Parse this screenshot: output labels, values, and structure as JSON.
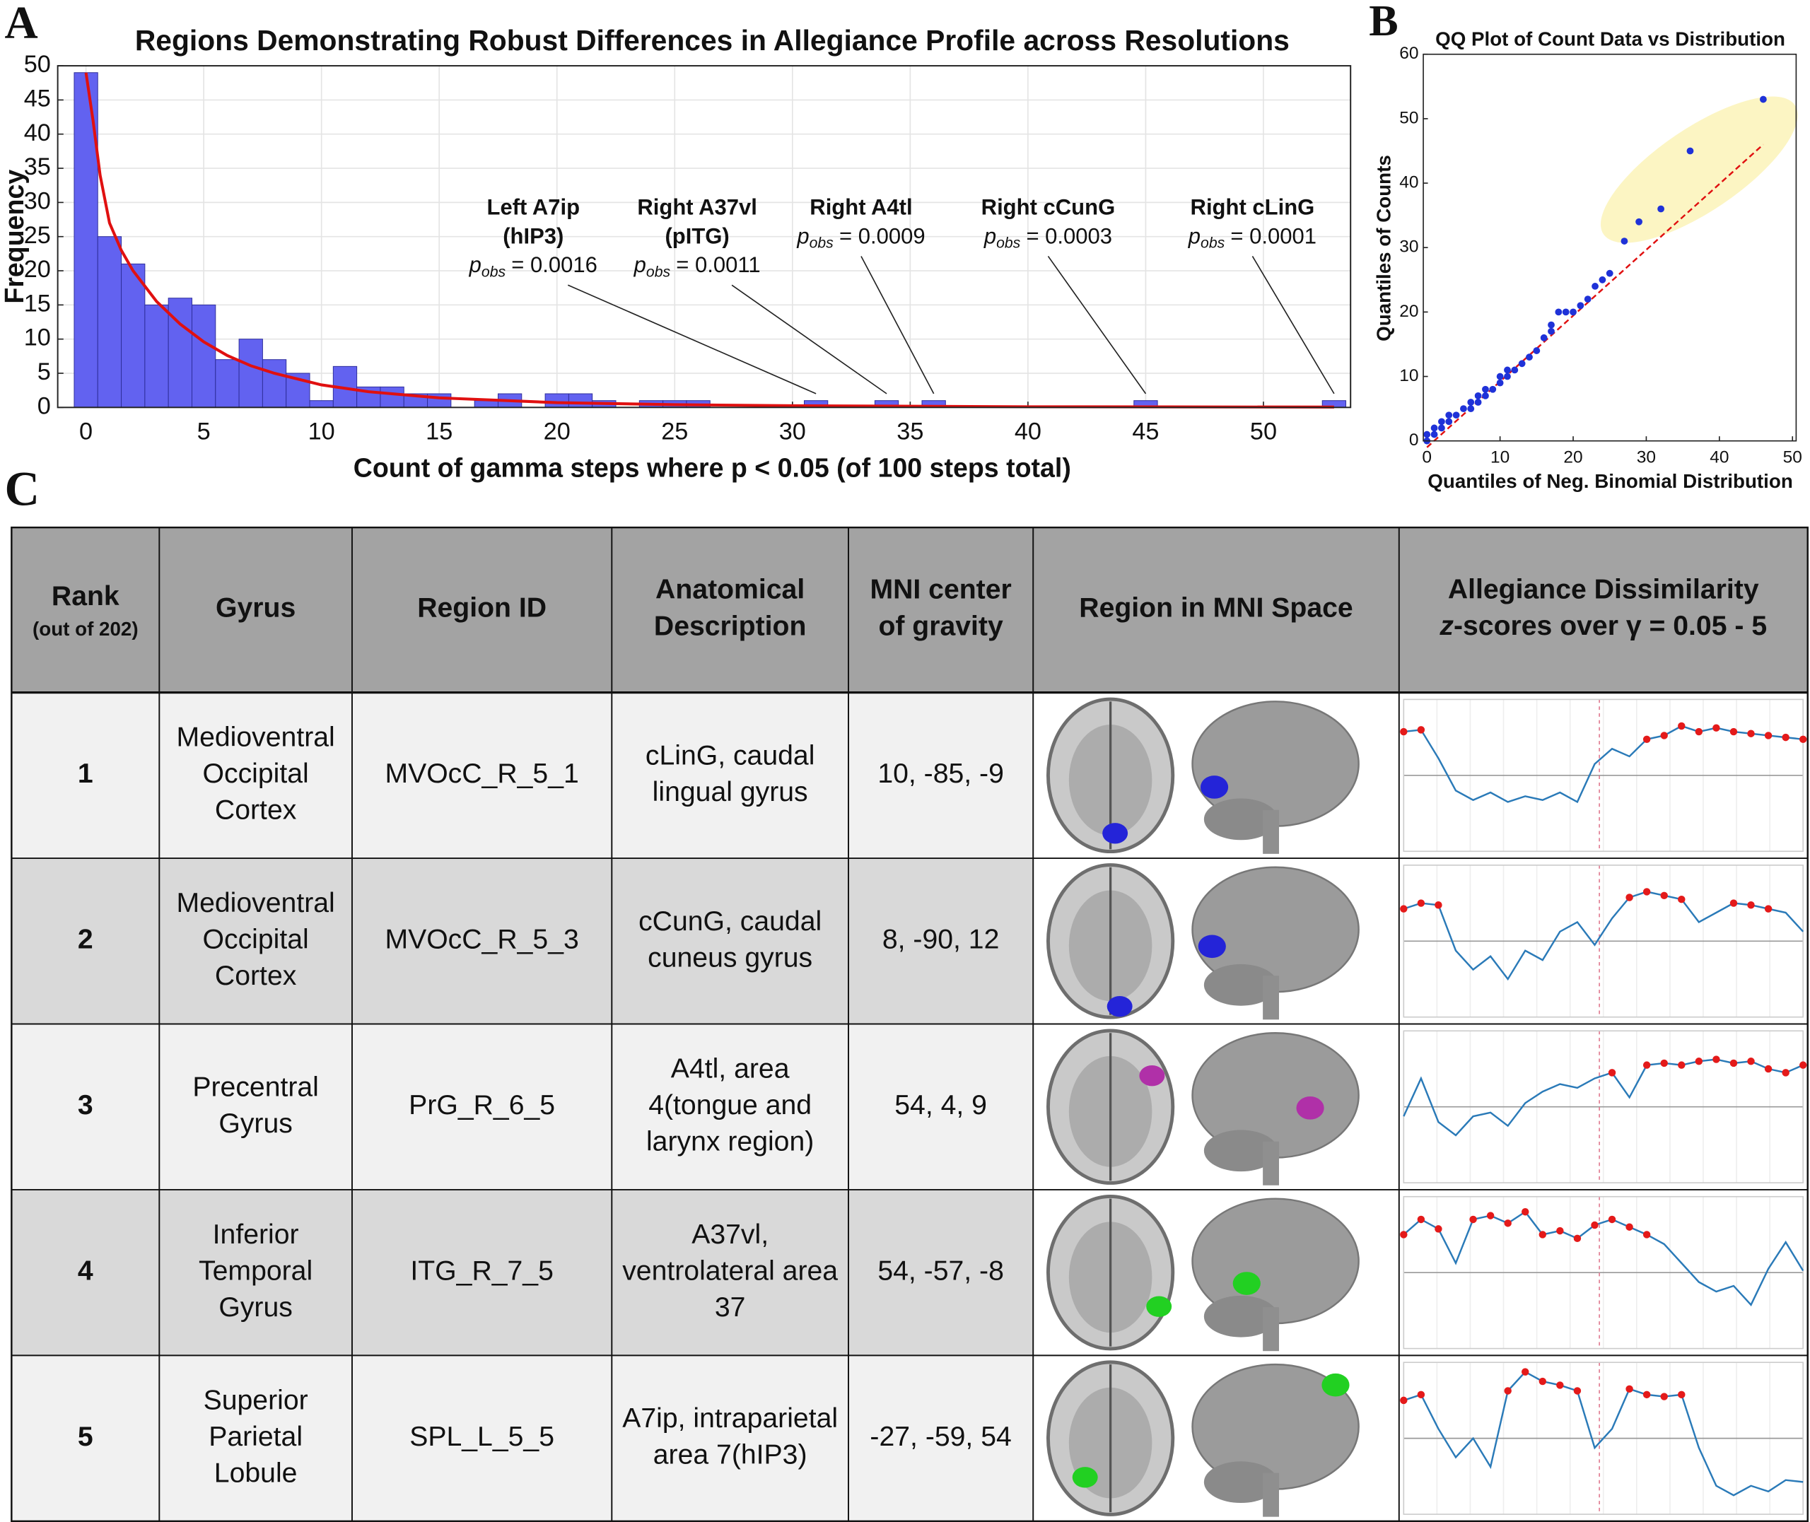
{
  "panels": {
    "a": "A",
    "b": "B",
    "c": "C"
  },
  "chart_data": [
    {
      "type": "histogram",
      "title": "Regions Demonstrating Robust Differences in Allegiance Profile across Resolutions",
      "x_label": "Count of gamma steps where p < 0.05 (of 100 steps total)",
      "y_label": "Frequency",
      "bins": [
        -0.5,
        0.5,
        1.5,
        2.5,
        3.5,
        4.5,
        5.5,
        6.5,
        7.5,
        8.5,
        9.5,
        10.5,
        11.5,
        12.5,
        13.5,
        14.5,
        15.5,
        16.5,
        17.5,
        18.5,
        19.5,
        20.5,
        21.5,
        22.5,
        23.5,
        24.5,
        25.5,
        26.5,
        27.5,
        28.5,
        29.5,
        30.5,
        31.5,
        32.5,
        33.5,
        34.5,
        35.5,
        36.5,
        37.5,
        38.5,
        39.5,
        40.5,
        41.5,
        42.5,
        43.5,
        44.5,
        45.5,
        46.5,
        47.5,
        48.5,
        49.5,
        50.5,
        51.5,
        52.5,
        53.5
      ],
      "values": [
        49,
        25,
        21,
        15,
        16,
        15,
        7,
        10,
        7,
        5,
        1,
        6,
        3,
        3,
        2,
        2,
        0,
        1,
        2,
        0,
        2,
        2,
        1,
        0,
        1,
        1,
        1,
        0,
        0,
        0,
        0,
        1,
        0,
        0,
        1,
        0,
        1,
        0,
        0,
        0,
        0,
        0,
        0,
        0,
        0,
        1,
        0,
        0,
        0,
        0,
        0,
        0,
        0,
        1
      ],
      "color": "#6262f0",
      "fit_line": {
        "color": "#e01010",
        "x": [
          0,
          0.3,
          0.6,
          1,
          1.5,
          2,
          3,
          4,
          5,
          6,
          7,
          8,
          10,
          12,
          15,
          20,
          25,
          30,
          40,
          53
        ],
        "values": [
          49,
          42,
          34,
          27,
          23,
          20,
          15.5,
          12.2,
          9.6,
          7.6,
          6.1,
          5,
          3.3,
          2.3,
          1.4,
          0.7,
          0.4,
          0.25,
          0.1,
          0.05
        ]
      },
      "xlim": [
        -1.2,
        53.7
      ],
      "ylim": [
        0,
        50
      ],
      "xticks": [
        0,
        5,
        10,
        15,
        20,
        25,
        30,
        35,
        40,
        45,
        50
      ],
      "yticks": [
        0,
        5,
        10,
        15,
        20,
        25,
        30,
        35,
        40,
        45,
        50
      ],
      "grid": true,
      "annotations": [
        {
          "lines": [
            "Left A7ip",
            "(hIP3)"
          ],
          "p_symbol": "p",
          "p_subscript": "obs",
          "p_text": "= 0.0016",
          "target_x": 31,
          "target_y": 1
        },
        {
          "lines": [
            "Right A37vl",
            "(pITG)"
          ],
          "p_symbol": "p",
          "p_subscript": "obs",
          "p_text": "= 0.0011",
          "target_x": 34,
          "target_y": 1
        },
        {
          "lines": [
            "Right A4tl"
          ],
          "p_symbol": "p",
          "p_subscript": "obs",
          "p_text": "= 0.0009",
          "target_x": 36,
          "target_y": 1
        },
        {
          "lines": [
            "Right cCunG"
          ],
          "p_symbol": "p",
          "p_subscript": "obs",
          "p_text": "= 0.0003",
          "target_x": 45,
          "target_y": 1
        },
        {
          "lines": [
            "Right cLinG"
          ],
          "p_symbol": "p",
          "p_subscript": "obs",
          "p_text": "= 0.0001",
          "target_x": 53,
          "target_y": 1
        }
      ]
    },
    {
      "type": "scatter",
      "title": "QQ Plot of Count Data vs Distribution",
      "x_label": "Quantiles of Neg. Binomial Distribution",
      "y_label": "Quantiles of Counts",
      "x": [
        0,
        0,
        1,
        1,
        2,
        2,
        3,
        3,
        4,
        5,
        6,
        6,
        7,
        7,
        8,
        8,
        9,
        10,
        10,
        11,
        11,
        12,
        13,
        14,
        15,
        16,
        17,
        17,
        18,
        19,
        20,
        21,
        22,
        23,
        24,
        25,
        27,
        29,
        32,
        36,
        46
      ],
      "values": [
        0,
        1,
        1,
        2,
        2,
        3,
        3,
        4,
        4,
        5,
        5,
        6,
        6,
        7,
        7,
        8,
        8,
        9,
        10,
        10,
        11,
        11,
        12,
        13,
        14,
        16,
        17,
        18,
        20,
        20,
        20,
        21,
        22,
        24,
        25,
        26,
        31,
        34,
        36,
        45,
        53
      ],
      "color": "#1f32d8",
      "reference_line": {
        "color": "#e01010",
        "x": [
          0,
          46
        ],
        "values": [
          -1,
          46
        ]
      },
      "xlim": [
        -0.5,
        50.5
      ],
      "ylim": [
        0,
        60
      ],
      "xticks": [
        0,
        10,
        20,
        30,
        40,
        50
      ],
      "yticks": [
        0,
        10,
        20,
        30,
        40,
        50,
        60
      ]
    }
  ],
  "table": {
    "header": [
      {
        "lines": [
          "Rank"
        ],
        "note": "(out of 202)"
      },
      {
        "lines": [
          "Gyrus"
        ]
      },
      {
        "lines": [
          "Region ID"
        ]
      },
      {
        "lines": [
          "Anatomical",
          "Description"
        ]
      },
      {
        "lines": [
          "MNI center",
          "of gravity"
        ]
      },
      {
        "lines": [
          "Region in MNI Space"
        ]
      },
      {
        "lines": [
          "Allegiance Dissimilarity"
        ],
        "italic": "z",
        "rest": "-scores over γ = 0.05 - 5"
      }
    ],
    "zscore_ylim": [
      -4,
      4
    ],
    "line_color": "#2a7ab8",
    "point_color": "#e41a1a",
    "rows": [
      {
        "rank": 1,
        "gyrus": [
          "Medioventral",
          "Occipital",
          "Cortex"
        ],
        "region_id": "MVOcC_R_5_1",
        "description": [
          "cLinG, caudal",
          "lingual gyrus"
        ],
        "mni": "10, -85, -9",
        "color": "#2424d8",
        "zscores": [
          2.3,
          2.4,
          0.9,
          -0.8,
          -1.3,
          -0.9,
          -1.4,
          -1.1,
          -1.3,
          -0.9,
          -1.4,
          0.6,
          1.4,
          1.0,
          1.9,
          2.1,
          2.6,
          2.3,
          2.5,
          2.3,
          2.2,
          2.1,
          2.0,
          1.9
        ],
        "significant": [
          2.3,
          2.4,
          null,
          null,
          null,
          null,
          null,
          null,
          null,
          null,
          null,
          null,
          null,
          null,
          1.9,
          2.1,
          2.6,
          2.3,
          2.5,
          2.3,
          2.2,
          2.1,
          2.0,
          1.9
        ]
      },
      {
        "rank": 2,
        "gyrus": [
          "Medioventral",
          "Occipital",
          "Cortex"
        ],
        "region_id": "MVOcC_R_5_3",
        "description": [
          "cCunG, caudal",
          "cuneus gyrus"
        ],
        "mni": "8, -90, 12",
        "color": "#2424d8",
        "zscores": [
          1.7,
          2.0,
          1.9,
          -0.5,
          -1.5,
          -0.8,
          -2.0,
          -0.5,
          -1.0,
          0.5,
          1.0,
          -0.2,
          1.2,
          2.3,
          2.6,
          2.4,
          2.2,
          1.0,
          1.5,
          2.0,
          1.9,
          1.7,
          1.5,
          0.5
        ],
        "significant": [
          1.7,
          2.0,
          1.9,
          null,
          null,
          null,
          null,
          null,
          null,
          null,
          null,
          null,
          null,
          2.3,
          2.6,
          2.4,
          2.2,
          null,
          null,
          2.0,
          1.9,
          1.7,
          null,
          null
        ]
      },
      {
        "rank": 3,
        "gyrus": [
          "Precentral",
          "Gyrus"
        ],
        "region_id": "PrG_R_6_5",
        "description": [
          "A4tl, area",
          "4(tongue and",
          "larynx region)"
        ],
        "mni": "54, 4, 9",
        "color": "#b030a8",
        "zscores": [
          -0.5,
          1.5,
          -0.8,
          -1.5,
          -0.5,
          -0.3,
          -1.0,
          0.2,
          0.8,
          1.2,
          1.0,
          1.5,
          1.8,
          0.5,
          2.2,
          2.3,
          2.2,
          2.4,
          2.5,
          2.3,
          2.4,
          2.0,
          1.8,
          2.2
        ],
        "significant": [
          null,
          null,
          null,
          null,
          null,
          null,
          null,
          null,
          null,
          null,
          null,
          null,
          1.8,
          null,
          2.2,
          2.3,
          2.2,
          2.4,
          2.5,
          2.3,
          2.4,
          2.0,
          1.8,
          2.2
        ]
      },
      {
        "rank": 4,
        "gyrus": [
          "Inferior",
          "Temporal",
          "Gyrus"
        ],
        "region_id": "ITG_R_7_5",
        "description": [
          "A37vl,",
          "ventrolateral area",
          "37"
        ],
        "mni": "54, -57, -8",
        "color": "#22d022",
        "zscores": [
          2.0,
          2.8,
          2.3,
          0.5,
          2.8,
          3.0,
          2.6,
          3.2,
          2.0,
          2.2,
          1.8,
          2.5,
          2.8,
          2.4,
          2.0,
          1.5,
          0.5,
          -0.5,
          -1.0,
          -0.7,
          -1.7,
          0.2,
          1.6,
          0.1
        ],
        "significant": [
          2.0,
          2.8,
          2.3,
          null,
          2.8,
          3.0,
          2.6,
          3.2,
          2.0,
          2.2,
          1.8,
          2.5,
          2.8,
          2.4,
          2.0,
          null,
          null,
          null,
          null,
          null,
          null,
          null,
          null,
          null
        ]
      },
      {
        "rank": 5,
        "gyrus": [
          "Superior",
          "Parietal",
          "Lobule"
        ],
        "region_id": "SPL_L_5_5",
        "description": [
          "A7ip, intraparietal",
          "area 7(hIP3)"
        ],
        "mni": "-27, -59, 54",
        "color": "#22d022",
        "zscores": [
          2.0,
          2.3,
          0.5,
          -1.0,
          0.0,
          -1.5,
          2.5,
          3.5,
          3.0,
          2.8,
          2.5,
          -0.5,
          0.5,
          2.6,
          2.3,
          2.2,
          2.3,
          -0.5,
          -2.5,
          -3.0,
          -2.5,
          -2.8,
          -2.2,
          -2.3
        ],
        "significant": [
          2.0,
          2.3,
          null,
          null,
          null,
          null,
          2.5,
          3.5,
          3.0,
          2.8,
          2.5,
          null,
          null,
          2.6,
          2.3,
          2.2,
          2.3,
          null,
          null,
          null,
          null,
          null,
          null,
          null
        ]
      }
    ]
  }
}
